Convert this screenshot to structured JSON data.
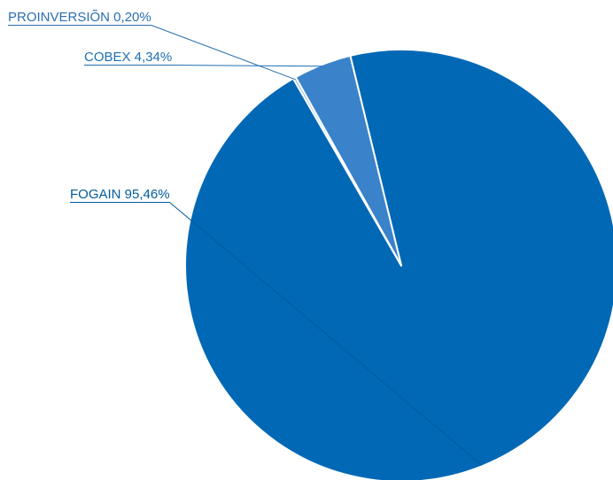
{
  "chart_data": {
    "type": "pie",
    "title": "",
    "slices": [
      {
        "label": "FOGAIN 95,46%",
        "name": "FOGAIN",
        "value": 95.46,
        "color": "#0068b5",
        "label_color": "#005a9c"
      },
      {
        "label": "COBEX 4,34%",
        "name": "COBEX",
        "value": 4.34,
        "color": "#3a82c9",
        "label_color": "#1f6fb2"
      },
      {
        "label": "PROINVERSIÕN 0,20%",
        "name": "PROINVERSIÕN",
        "value": 0.2,
        "color": "#8db4e2",
        "label_color": "#2a6fb0"
      }
    ]
  }
}
